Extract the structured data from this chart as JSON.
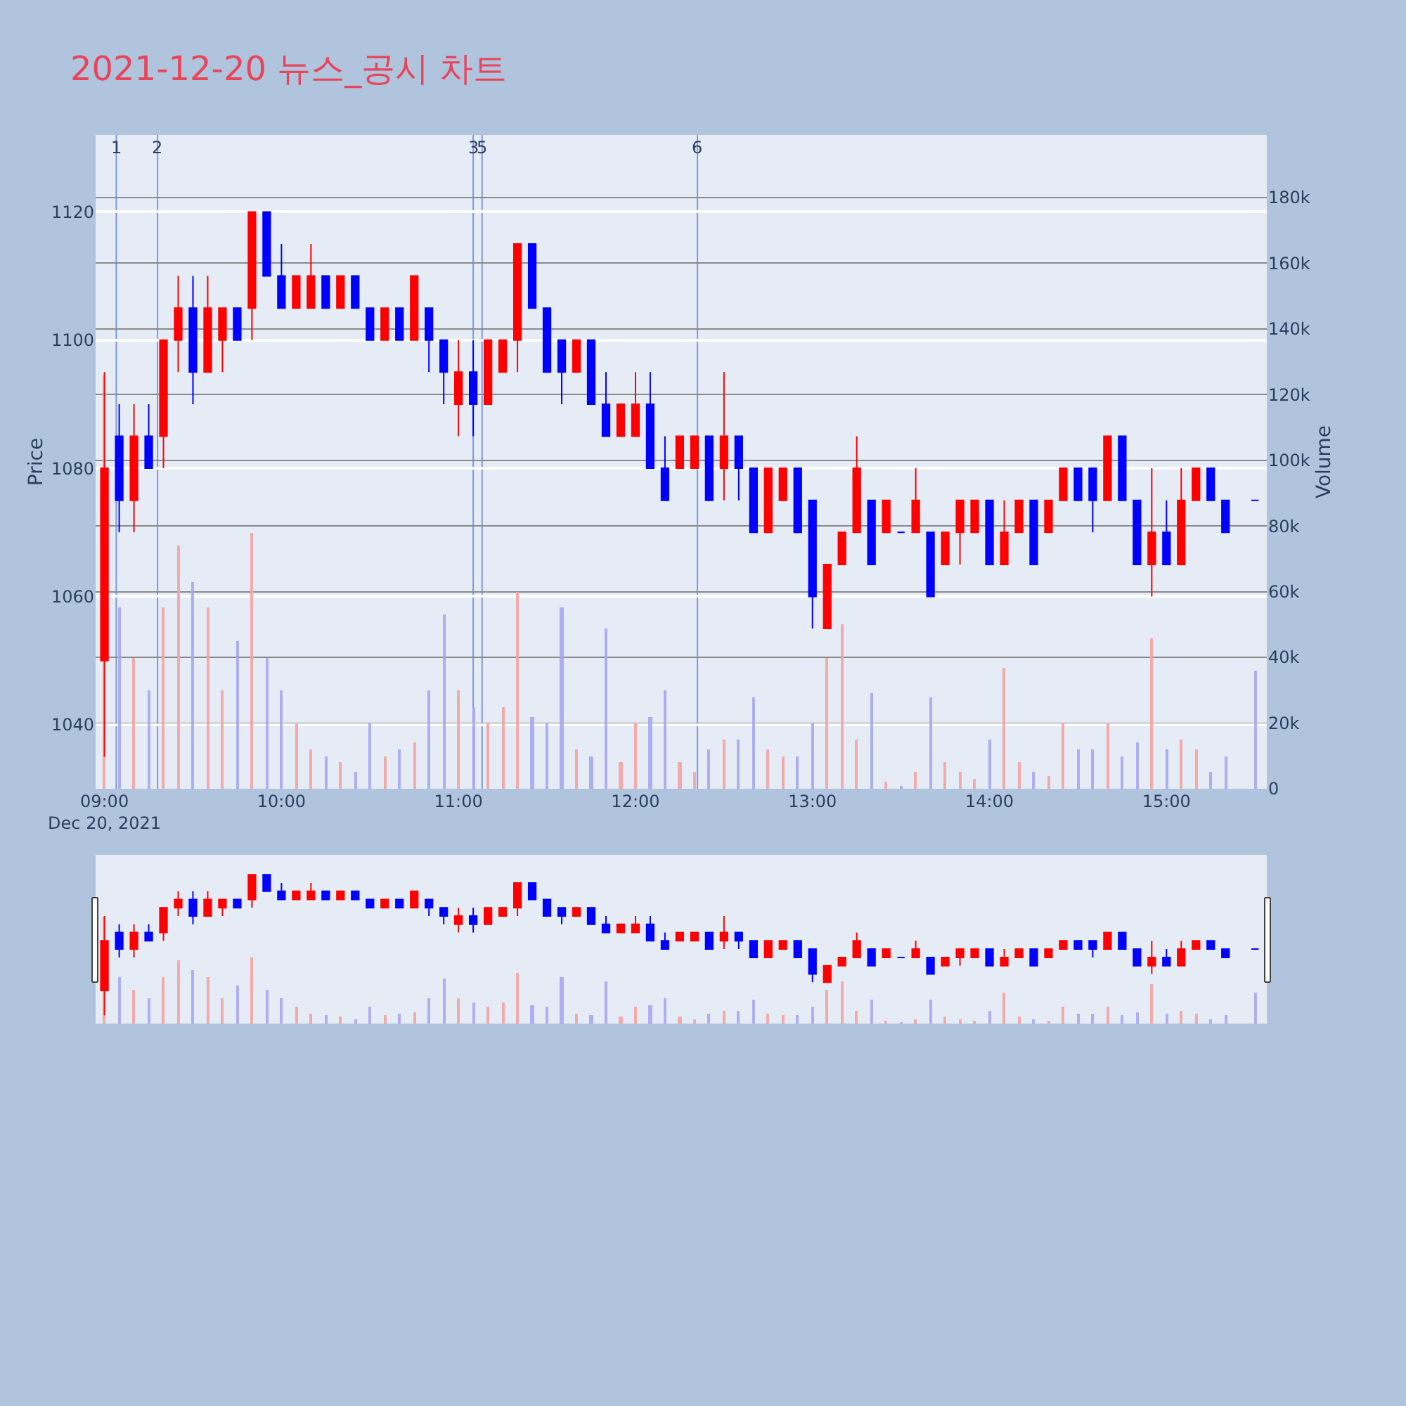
{
  "chart_data": {
    "type": "candlestick",
    "title": "2021-12-20 뉴스_공시 차트",
    "ylabel": "Price",
    "y2label": "Volume",
    "x": [
      "2021-12-20T09:00",
      "2021-12-20T09:05",
      "2021-12-20T09:10",
      "2021-12-20T09:15",
      "2021-12-20T09:20",
      "2021-12-20T09:25",
      "2021-12-20T09:30",
      "2021-12-20T09:35",
      "2021-12-20T09:40",
      "2021-12-20T09:45",
      "2021-12-20T09:50",
      "2021-12-20T09:55",
      "2021-12-20T10:00",
      "2021-12-20T10:05",
      "2021-12-20T10:10",
      "2021-12-20T10:15",
      "2021-12-20T10:20",
      "2021-12-20T10:25",
      "2021-12-20T10:30",
      "2021-12-20T10:35",
      "2021-12-20T10:40",
      "2021-12-20T10:45",
      "2021-12-20T10:50",
      "2021-12-20T10:55",
      "2021-12-20T11:00",
      "2021-12-20T11:05",
      "2021-12-20T11:10",
      "2021-12-20T11:15",
      "2021-12-20T11:20",
      "2021-12-20T11:25",
      "2021-12-20T11:30",
      "2021-12-20T11:35",
      "2021-12-20T11:40",
      "2021-12-20T11:45",
      "2021-12-20T11:50",
      "2021-12-20T11:55",
      "2021-12-20T12:00",
      "2021-12-20T12:05",
      "2021-12-20T12:10",
      "2021-12-20T12:15",
      "2021-12-20T12:20",
      "2021-12-20T12:25",
      "2021-12-20T12:30",
      "2021-12-20T12:35",
      "2021-12-20T12:40",
      "2021-12-20T12:45",
      "2021-12-20T12:50",
      "2021-12-20T12:55",
      "2021-12-20T13:00",
      "2021-12-20T13:05",
      "2021-12-20T13:10",
      "2021-12-20T13:15",
      "2021-12-20T13:20",
      "2021-12-20T13:25",
      "2021-12-20T13:30",
      "2021-12-20T13:35",
      "2021-12-20T13:40",
      "2021-12-20T13:45",
      "2021-12-20T13:50",
      "2021-12-20T13:55",
      "2021-12-20T14:00",
      "2021-12-20T14:05",
      "2021-12-20T14:10",
      "2021-12-20T14:15",
      "2021-12-20T14:20",
      "2021-12-20T14:25",
      "2021-12-20T14:30",
      "2021-12-20T14:35",
      "2021-12-20T14:40",
      "2021-12-20T14:45",
      "2021-12-20T14:50",
      "2021-12-20T14:55",
      "2021-12-20T15:00",
      "2021-12-20T15:05",
      "2021-12-20T15:10",
      "2021-12-20T15:15",
      "2021-12-20T15:20",
      "2021-12-20T15:30"
    ],
    "ohlc": [
      [
        1050,
        1095,
        1035,
        1080
      ],
      [
        1085,
        1090,
        1070,
        1075
      ],
      [
        1075,
        1090,
        1070,
        1085
      ],
      [
        1085,
        1090,
        1080,
        1080
      ],
      [
        1085,
        1100,
        1080,
        1100
      ],
      [
        1100,
        1110,
        1095,
        1105
      ],
      [
        1105,
        1110,
        1090,
        1095
      ],
      [
        1095,
        1110,
        1095,
        1105
      ],
      [
        1100,
        1105,
        1095,
        1105
      ],
      [
        1105,
        1105,
        1100,
        1100
      ],
      [
        1105,
        1120,
        1100,
        1120
      ],
      [
        1120,
        1120,
        1110,
        1110
      ],
      [
        1110,
        1115,
        1105,
        1105
      ],
      [
        1105,
        1110,
        1105,
        1110
      ],
      [
        1105,
        1115,
        1105,
        1110
      ],
      [
        1110,
        1110,
        1105,
        1105
      ],
      [
        1105,
        1110,
        1105,
        1110
      ],
      [
        1110,
        1110,
        1105,
        1105
      ],
      [
        1105,
        1105,
        1100,
        1100
      ],
      [
        1100,
        1105,
        1100,
        1105
      ],
      [
        1105,
        1105,
        1100,
        1100
      ],
      [
        1100,
        1110,
        1100,
        1110
      ],
      [
        1105,
        1105,
        1095,
        1100
      ],
      [
        1100,
        1100,
        1090,
        1095
      ],
      [
        1090,
        1100,
        1085,
        1095
      ],
      [
        1095,
        1100,
        1085,
        1090
      ],
      [
        1090,
        1100,
        1090,
        1100
      ],
      [
        1095,
        1100,
        1095,
        1100
      ],
      [
        1100,
        1115,
        1095,
        1115
      ],
      [
        1115,
        1115,
        1105,
        1105
      ],
      [
        1105,
        1105,
        1095,
        1095
      ],
      [
        1100,
        1100,
        1090,
        1095
      ],
      [
        1095,
        1100,
        1095,
        1100
      ],
      [
        1100,
        1100,
        1090,
        1090
      ],
      [
        1090,
        1095,
        1085,
        1085
      ],
      [
        1085,
        1090,
        1085,
        1090
      ],
      [
        1085,
        1095,
        1085,
        1090
      ],
      [
        1090,
        1095,
        1080,
        1080
      ],
      [
        1080,
        1085,
        1075,
        1075
      ],
      [
        1080,
        1085,
        1080,
        1085
      ],
      [
        1080,
        1085,
        1080,
        1085
      ],
      [
        1085,
        1085,
        1075,
        1075
      ],
      [
        1080,
        1095,
        1075,
        1085
      ],
      [
        1085,
        1085,
        1075,
        1080
      ],
      [
        1080,
        1080,
        1070,
        1070
      ],
      [
        1070,
        1080,
        1070,
        1080
      ],
      [
        1075,
        1080,
        1075,
        1080
      ],
      [
        1080,
        1080,
        1070,
        1070
      ],
      [
        1075,
        1075,
        1055,
        1060
      ],
      [
        1055,
        1065,
        1055,
        1065
      ],
      [
        1065,
        1070,
        1065,
        1070
      ],
      [
        1070,
        1085,
        1070,
        1080
      ],
      [
        1075,
        1075,
        1065,
        1065
      ],
      [
        1070,
        1075,
        1070,
        1075
      ],
      [
        1070,
        1070,
        1070,
        1070
      ],
      [
        1070,
        1080,
        1070,
        1075
      ],
      [
        1070,
        1070,
        1060,
        1060
      ],
      [
        1065,
        1070,
        1065,
        1070
      ],
      [
        1070,
        1075,
        1065,
        1075
      ],
      [
        1070,
        1075,
        1070,
        1075
      ],
      [
        1075,
        1075,
        1065,
        1065
      ],
      [
        1065,
        1075,
        1065,
        1070
      ],
      [
        1070,
        1075,
        1070,
        1075
      ],
      [
        1075,
        1075,
        1065,
        1065
      ],
      [
        1070,
        1075,
        1070,
        1075
      ],
      [
        1075,
        1080,
        1075,
        1080
      ],
      [
        1080,
        1080,
        1075,
        1075
      ],
      [
        1080,
        1080,
        1070,
        1075
      ],
      [
        1075,
        1085,
        1075,
        1085
      ],
      [
        1085,
        1085,
        1075,
        1075
      ],
      [
        1075,
        1075,
        1065,
        1065
      ],
      [
        1065,
        1080,
        1060,
        1070
      ],
      [
        1070,
        1075,
        1065,
        1065
      ],
      [
        1065,
        1080,
        1065,
        1075
      ],
      [
        1075,
        1080,
        1075,
        1080
      ],
      [
        1080,
        1080,
        1075,
        1075
      ],
      [
        1075,
        1075,
        1070,
        1070
      ],
      [
        1075,
        1075,
        1075,
        1075
      ]
    ],
    "colors": [
      "#ff0000",
      "#0000ff",
      "#ff0000",
      "#0000ff",
      "#ff0000",
      "#ff0000",
      "#0000ff",
      "#ff0000",
      "#ff0000",
      "#0000ff",
      "#ff0000",
      "#0000ff",
      "#0000ff",
      "#ff0000",
      "#ff0000",
      "#0000ff",
      "#ff0000",
      "#0000ff",
      "#0000ff",
      "#ff0000",
      "#0000ff",
      "#ff0000",
      "#0000ff",
      "#0000ff",
      "#ff0000",
      "#0000ff",
      "#ff0000",
      "#ff0000",
      "#ff0000",
      "#0000ff",
      "#0000ff",
      "#0000ff",
      "#ff0000",
      "#0000ff",
      "#0000ff",
      "#ff0000",
      "#ff0000",
      "#0000ff",
      "#0000ff",
      "#ff0000",
      "#ff0000",
      "#0000ff",
      "#ff0000",
      "#0000ff",
      "#0000ff",
      "#ff0000",
      "#ff0000",
      "#0000ff",
      "#0000ff",
      "#ff0000",
      "#ff0000",
      "#ff0000",
      "#0000ff",
      "#ff0000",
      "#0000ff",
      "#ff0000",
      "#0000ff",
      "#ff0000",
      "#ff0000",
      "#ff0000",
      "#0000ff",
      "#ff0000",
      "#ff0000",
      "#0000ff",
      "#ff0000",
      "#ff0000",
      "#0000ff",
      "#0000ff",
      "#ff0000",
      "#0000ff",
      "#0000ff",
      "#ff0000",
      "#0000ff",
      "#ff0000",
      "#ff0000",
      "#0000ff",
      "#0000ff",
      "#0000ff"
    ],
    "series": [
      {
        "type": "bar",
        "axis": "y2",
        "values": [
          126000,
          55000,
          40000,
          30000,
          55000,
          74000,
          63000,
          55000,
          30000,
          45000,
          78000,
          40000,
          30000,
          20000,
          12000,
          10000,
          8000,
          5000,
          20000,
          10000,
          12000,
          14000,
          30000,
          53000,
          30000,
          25000,
          20000,
          25000,
          60000,
          22000,
          20000,
          55000,
          12000,
          10000,
          49000,
          8000,
          20000,
          22000,
          30000,
          8000,
          5000,
          12000,
          15000,
          15000,
          28000,
          12000,
          10000,
          10000,
          20000,
          40000,
          50000,
          15000,
          29000,
          2000,
          1000,
          5000,
          28000,
          8000,
          5000,
          3000,
          15000,
          37000,
          8000,
          5000,
          4000,
          20000,
          12000,
          12000,
          20000,
          10000,
          14000,
          46000,
          12000,
          15000,
          12000,
          5000,
          10000,
          36000
        ],
        "colors": [
          "#f4a3a3",
          "#a8a8f0",
          "#f4a3a3",
          "#a8a8f0",
          "#f4a3a3",
          "#f4a3a3",
          "#a8a8f0",
          "#f4a3a3",
          "#f4a3a3",
          "#a8a8f0",
          "#f4a3a3",
          "#a8a8f0",
          "#a8a8f0",
          "#f4a3a3",
          "#f4a3a3",
          "#a8a8f0",
          "#f4a3a3",
          "#a8a8f0",
          "#a8a8f0",
          "#f4a3a3",
          "#a8a8f0",
          "#f4a3a3",
          "#a8a8f0",
          "#a8a8f0",
          "#f4a3a3",
          "#a8a8f0",
          "#f4a3a3",
          "#f4a3a3",
          "#f4a3a3",
          "#a8a8f0",
          "#a8a8f0",
          "#a8a8f0",
          "#f4a3a3",
          "#a8a8f0",
          "#a8a8f0",
          "#f4a3a3",
          "#f4a3a3",
          "#a8a8f0",
          "#a8a8f0",
          "#f4a3a3",
          "#f4a3a3",
          "#a8a8f0",
          "#f4a3a3",
          "#a8a8f0",
          "#a8a8f0",
          "#f4a3a3",
          "#f4a3a3",
          "#a8a8f0",
          "#a8a8f0",
          "#f4a3a3",
          "#f4a3a3",
          "#f4a3a3",
          "#a8a8f0",
          "#f4a3a3",
          "#a8a8f0",
          "#f4a3a3",
          "#a8a8f0",
          "#f4a3a3",
          "#f4a3a3",
          "#f4a3a3",
          "#a8a8f0",
          "#f4a3a3",
          "#f4a3a3",
          "#a8a8f0",
          "#f4a3a3",
          "#f4a3a3",
          "#a8a8f0",
          "#a8a8f0",
          "#f4a3a3",
          "#a8a8f0",
          "#a8a8f0",
          "#f4a3a3",
          "#a8a8f0",
          "#f4a3a3",
          "#f4a3a3",
          "#a8a8f0",
          "#a8a8f0",
          "#a8a8f0"
        ]
      }
    ],
    "xlim": [
      "2021-12-20T08:57",
      "2021-12-20T15:34"
    ],
    "xticks": [
      {
        "value": "2021-12-20T09:00",
        "label": "09:00\nDec 20, 2021"
      },
      {
        "value": "2021-12-20T10:00",
        "label": "10:00"
      },
      {
        "value": "2021-12-20T11:00",
        "label": "11:00"
      },
      {
        "value": "2021-12-20T12:00",
        "label": "12:00"
      },
      {
        "value": "2021-12-20T13:00",
        "label": "13:00"
      },
      {
        "value": "2021-12-20T14:00",
        "label": "14:00"
      },
      {
        "value": "2021-12-20T15:00",
        "label": "15:00"
      }
    ],
    "ylim": [
      1030,
      1132
    ],
    "yticks": [
      1040,
      1060,
      1080,
      1100,
      1120
    ],
    "y2lim": [
      0,
      199000
    ],
    "y2ticks": [
      {
        "value": 0,
        "label": "0"
      },
      {
        "value": 20000,
        "label": "20k"
      },
      {
        "value": 40000,
        "label": "40k"
      },
      {
        "value": 60000,
        "label": "60k"
      },
      {
        "value": 80000,
        "label": "80k"
      },
      {
        "value": 100000,
        "label": "100k"
      },
      {
        "value": 120000,
        "label": "120k"
      },
      {
        "value": 140000,
        "label": "140k"
      },
      {
        "value": 160000,
        "label": "160k"
      },
      {
        "value": 180000,
        "label": "180k"
      }
    ],
    "ref_lines": [
      {
        "axis": "x",
        "value": "2021-12-20T09:04",
        "label": "1",
        "color": "#7f96e0"
      },
      {
        "axis": "x",
        "value": "2021-12-20T09:18",
        "label": "2",
        "color": "#7f96e0"
      },
      {
        "axis": "x",
        "value": "2021-12-20T11:05",
        "label": "3",
        "color": "#7f96e0"
      },
      {
        "axis": "x",
        "value": "2021-12-20T11:08",
        "label": "5",
        "color": "#7f96e0"
      },
      {
        "axis": "x",
        "value": "2021-12-20T12:21",
        "label": "6",
        "color": "#7f96e0"
      }
    ],
    "grid": true
  }
}
